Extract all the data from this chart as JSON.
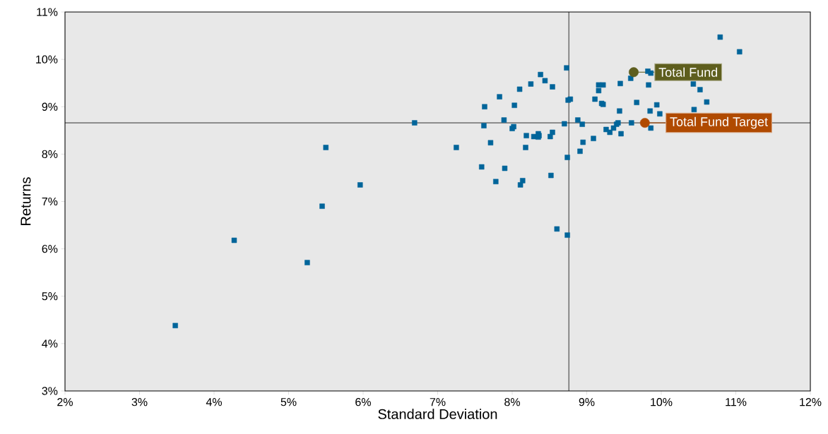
{
  "chart_data": {
    "type": "scatter",
    "xlabel": "Standard Deviation",
    "ylabel": "Returns",
    "xlim": [
      2,
      12
    ],
    "ylim": [
      3,
      11
    ],
    "xticks": [
      {
        "value": 2,
        "label": "2%"
      },
      {
        "value": 3,
        "label": "3%"
      },
      {
        "value": 4,
        "label": "4%"
      },
      {
        "value": 5,
        "label": "5%"
      },
      {
        "value": 6,
        "label": "6%"
      },
      {
        "value": 7,
        "label": "7%"
      },
      {
        "value": 8,
        "label": "8%"
      },
      {
        "value": 9,
        "label": "9%"
      },
      {
        "value": 10,
        "label": "10%"
      },
      {
        "value": 11,
        "label": "11%"
      },
      {
        "value": 12,
        "label": "12%"
      }
    ],
    "yticks": [
      {
        "value": 3,
        "label": "3%"
      },
      {
        "value": 4,
        "label": "4%"
      },
      {
        "value": 5,
        "label": "5%"
      },
      {
        "value": 6,
        "label": "6%"
      },
      {
        "value": 7,
        "label": "7%"
      },
      {
        "value": 8,
        "label": "8%"
      },
      {
        "value": 9,
        "label": "9%"
      },
      {
        "value": 10,
        "label": "10%"
      },
      {
        "value": 11,
        "label": "11%"
      }
    ],
    "grid": false,
    "legend": "right",
    "ref_lines": [
      {
        "axis": "x",
        "value": 8.76,
        "color": "#000000"
      },
      {
        "axis": "y",
        "value": 8.66,
        "color": "#000000"
      }
    ],
    "series": [
      {
        "color": "#00659a",
        "marker": "square",
        "x": [
          3.48,
          4.27,
          5.25,
          5.45,
          5.5,
          5.96,
          6.69,
          7.25,
          7.59,
          7.62,
          7.63,
          7.71,
          7.78,
          7.83,
          7.89,
          7.9,
          8.0,
          8.02,
          8.03,
          8.1,
          8.11,
          8.14,
          8.18,
          8.19,
          8.25,
          8.29,
          8.35,
          8.35,
          8.36,
          8.38,
          8.44,
          8.51,
          8.52,
          8.54,
          8.54,
          8.6,
          8.7,
          8.73,
          8.74,
          8.74,
          8.75,
          8.78,
          8.88,
          8.91,
          8.94,
          8.95,
          9.09,
          9.11,
          9.16,
          9.16,
          9.2,
          9.22,
          9.22,
          9.26,
          9.31,
          9.36,
          9.4,
          9.42,
          9.44,
          9.45,
          9.46,
          9.59,
          9.6,
          9.67,
          9.82,
          9.83,
          9.85,
          9.86,
          9.86,
          9.94,
          9.98,
          10.43,
          10.44,
          10.52,
          10.61,
          10.79,
          11.05
        ],
        "values": [
          4.38,
          6.18,
          5.71,
          6.9,
          8.14,
          7.35,
          8.66,
          8.14,
          7.73,
          8.6,
          9.0,
          8.24,
          7.42,
          9.21,
          8.72,
          7.7,
          8.54,
          8.58,
          9.03,
          9.37,
          7.35,
          7.44,
          8.14,
          8.39,
          9.48,
          8.37,
          8.43,
          8.36,
          8.39,
          9.68,
          9.55,
          8.37,
          7.55,
          8.46,
          9.42,
          6.42,
          8.64,
          9.82,
          7.93,
          6.29,
          9.14,
          9.16,
          8.72,
          8.06,
          8.63,
          8.25,
          8.33,
          9.16,
          9.46,
          9.34,
          9.07,
          9.46,
          9.05,
          8.52,
          8.46,
          8.55,
          8.63,
          8.66,
          8.91,
          9.49,
          8.43,
          9.6,
          8.66,
          9.09,
          9.75,
          9.46,
          8.91,
          9.71,
          8.55,
          9.04,
          8.85,
          9.48,
          8.94,
          9.36,
          9.1,
          10.47,
          10.16
        ]
      },
      {
        "name": "Total Fund",
        "color": "#5e5e1e",
        "marker": "circle",
        "x": [
          9.63
        ],
        "values": [
          9.73
        ]
      },
      {
        "name": "Total Fund Target",
        "color": "#b04a00",
        "marker": "circle",
        "x": [
          9.78
        ],
        "values": [
          8.66
        ]
      }
    ]
  }
}
